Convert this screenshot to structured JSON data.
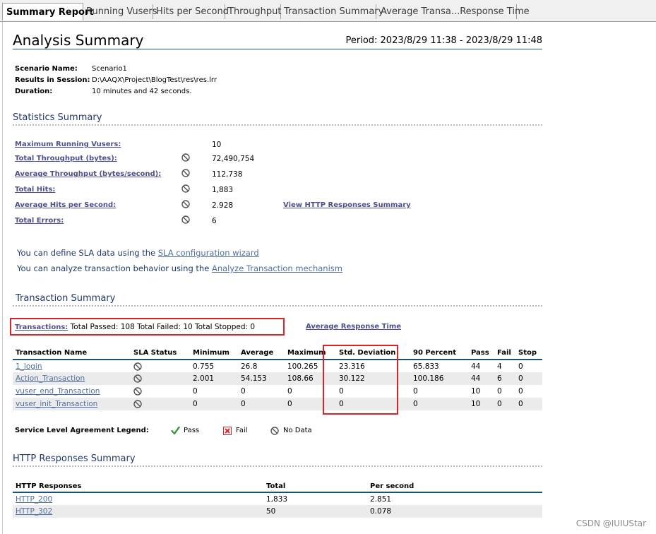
{
  "tabs": [
    {
      "label": "Summary Report",
      "active": true
    },
    {
      "label": "Running Vusers",
      "active": false
    },
    {
      "label": "Hits per Second",
      "active": false
    },
    {
      "label": "Throughput",
      "active": false
    },
    {
      "label": "Transaction Summary",
      "active": false
    },
    {
      "label": "Average Transa...Response Time",
      "active": false
    }
  ],
  "header": {
    "title": "Analysis Summary",
    "period": "Period: 2023/8/29 11:38 - 2023/8/29 11:48"
  },
  "scenario": {
    "name_label": "Scenario Name:",
    "name_value": "Scenario1",
    "session_label": "Results in Session:",
    "session_value": "D:\\AAQX\\Project\\BlogTest\\res\\res.lrr",
    "duration_label": "Duration:",
    "duration_value": "10 minutes and 42 seconds."
  },
  "statistics": {
    "title": "Statistics Summary",
    "rows": [
      {
        "label": "Maximum Running Vusers:",
        "value": "10",
        "icon": ""
      },
      {
        "label": "Total Throughput (bytes):",
        "value": "72,490,754",
        "icon": "no-data-icon"
      },
      {
        "label": "Average Throughput (bytes/second):",
        "value": "112,738",
        "icon": "no-data-icon"
      },
      {
        "label": "Total Hits:",
        "value": "1,883",
        "icon": "no-data-icon"
      },
      {
        "label": "Average Hits per Second:",
        "value": "2.928",
        "icon": "no-data-icon"
      },
      {
        "label": "Total Errors:",
        "value": "6",
        "icon": "no-data-icon"
      }
    ],
    "http_link": "View HTTP Responses Summary"
  },
  "sla": {
    "line1_prefix": "You can define SLA data using the ",
    "line1_link": "SLA configuration wizard",
    "line2_prefix": "You can analyze transaction behavior using the ",
    "line2_link": "Analyze Transaction mechanism"
  },
  "transactions": {
    "title": "Transaction Summary",
    "label": "Transactions:",
    "summary": " Total Passed: 108 Total Failed: 10 Total Stopped: 0",
    "avg_link": "Average Response Time",
    "columns": [
      "Transaction Name",
      "SLA Status",
      "Minimum",
      "Average",
      "Maximum",
      "Std. Deviation",
      "90 Percent",
      "Pass",
      "Fail",
      "Stop"
    ],
    "rows": [
      {
        "name": "1_login",
        "min": "0.755",
        "avg": "26.8",
        "max": "100.265",
        "std": "23.316",
        "p90": "65.833",
        "pass": "44",
        "fail": "4",
        "stop": "0"
      },
      {
        "name": "Action_Transaction",
        "min": "2.001",
        "avg": "54.153",
        "max": "108.66",
        "std": "30.122",
        "p90": "100.186",
        "pass": "44",
        "fail": "6",
        "stop": "0"
      },
      {
        "name": "vuser_end_Transaction",
        "min": "0",
        "avg": "0",
        "max": "0",
        "std": "0",
        "p90": "0",
        "pass": "10",
        "fail": "0",
        "stop": "0"
      },
      {
        "name": "vuser_init_Transaction",
        "min": "0",
        "avg": "0",
        "max": "0",
        "std": "0",
        "p90": "0",
        "pass": "10",
        "fail": "0",
        "stop": "0"
      }
    ]
  },
  "legend": {
    "title": "Service Level Agreement Legend:",
    "pass": "Pass",
    "fail": "Fail",
    "nodata": "No Data"
  },
  "http": {
    "title": "HTTP Responses Summary",
    "columns": [
      "HTTP Responses",
      "Total",
      "Per second"
    ],
    "rows": [
      {
        "name": "HTTP_200",
        "total": "1,833",
        "per_second": "2.851"
      },
      {
        "name": "HTTP_302",
        "total": "50",
        "per_second": "0.078"
      }
    ]
  },
  "watermark": "CSDN @IUIUStar",
  "colors": {
    "link": "#4f4f8f",
    "section_title": "#1f3a68",
    "highlight_box": "#d9252a",
    "pass_green": "#3a9a3a",
    "fail_red": "#d9252a"
  }
}
